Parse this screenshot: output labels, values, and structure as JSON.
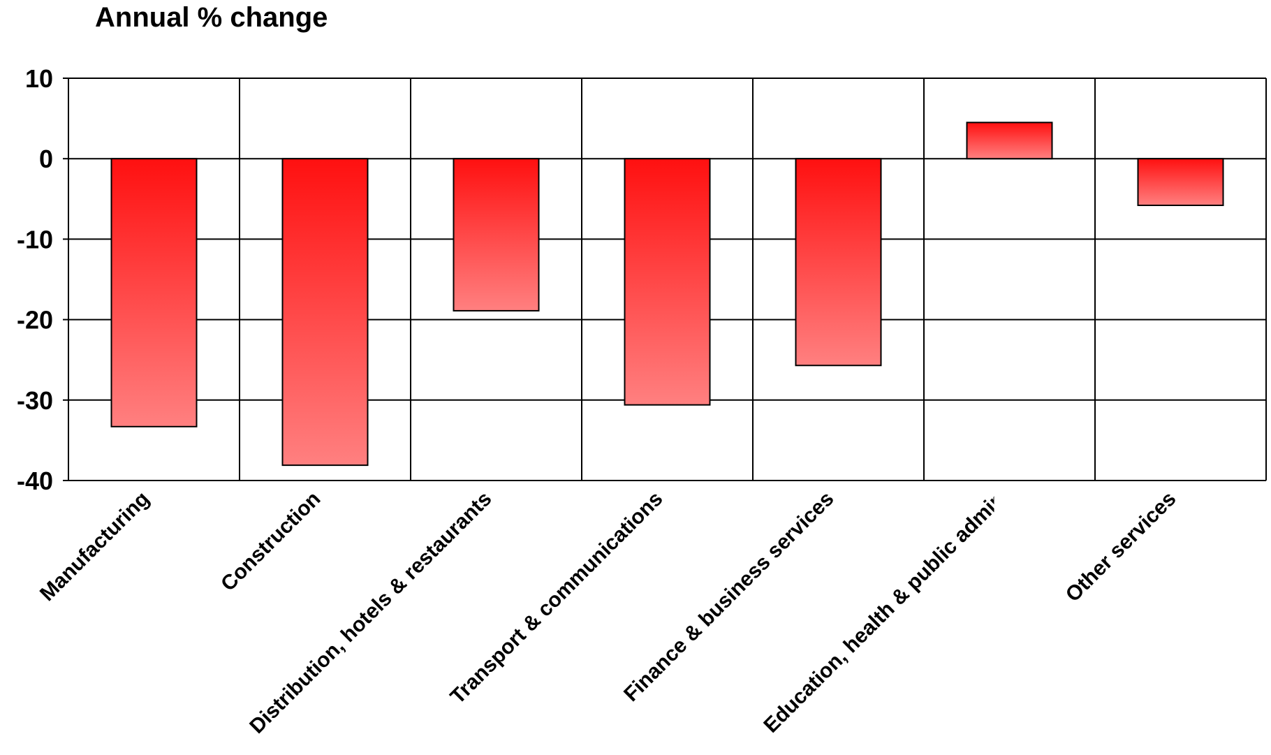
{
  "chart_data": {
    "type": "bar",
    "ylabel": "Annual % change",
    "ylim": [
      -40,
      10
    ],
    "yticks": [
      "10",
      "0",
      "-10",
      "-20",
      "-30",
      "-40"
    ],
    "ytick_values": [
      10,
      0,
      -10,
      -20,
      -30,
      -40
    ],
    "categories": [
      "Manufacturing",
      "Construction",
      "Distribution, hotels & restaurants",
      "Transport & communications",
      "Finance & business services",
      "Education, health & public admin",
      "Other services"
    ],
    "values": [
      -33.3,
      -38.1,
      -18.9,
      -30.6,
      -25.7,
      4.5,
      -5.8
    ],
    "grid": true,
    "bar_colors": {
      "top": "#ff1010",
      "bottom": "#ff8080",
      "stroke": "#000000"
    }
  }
}
